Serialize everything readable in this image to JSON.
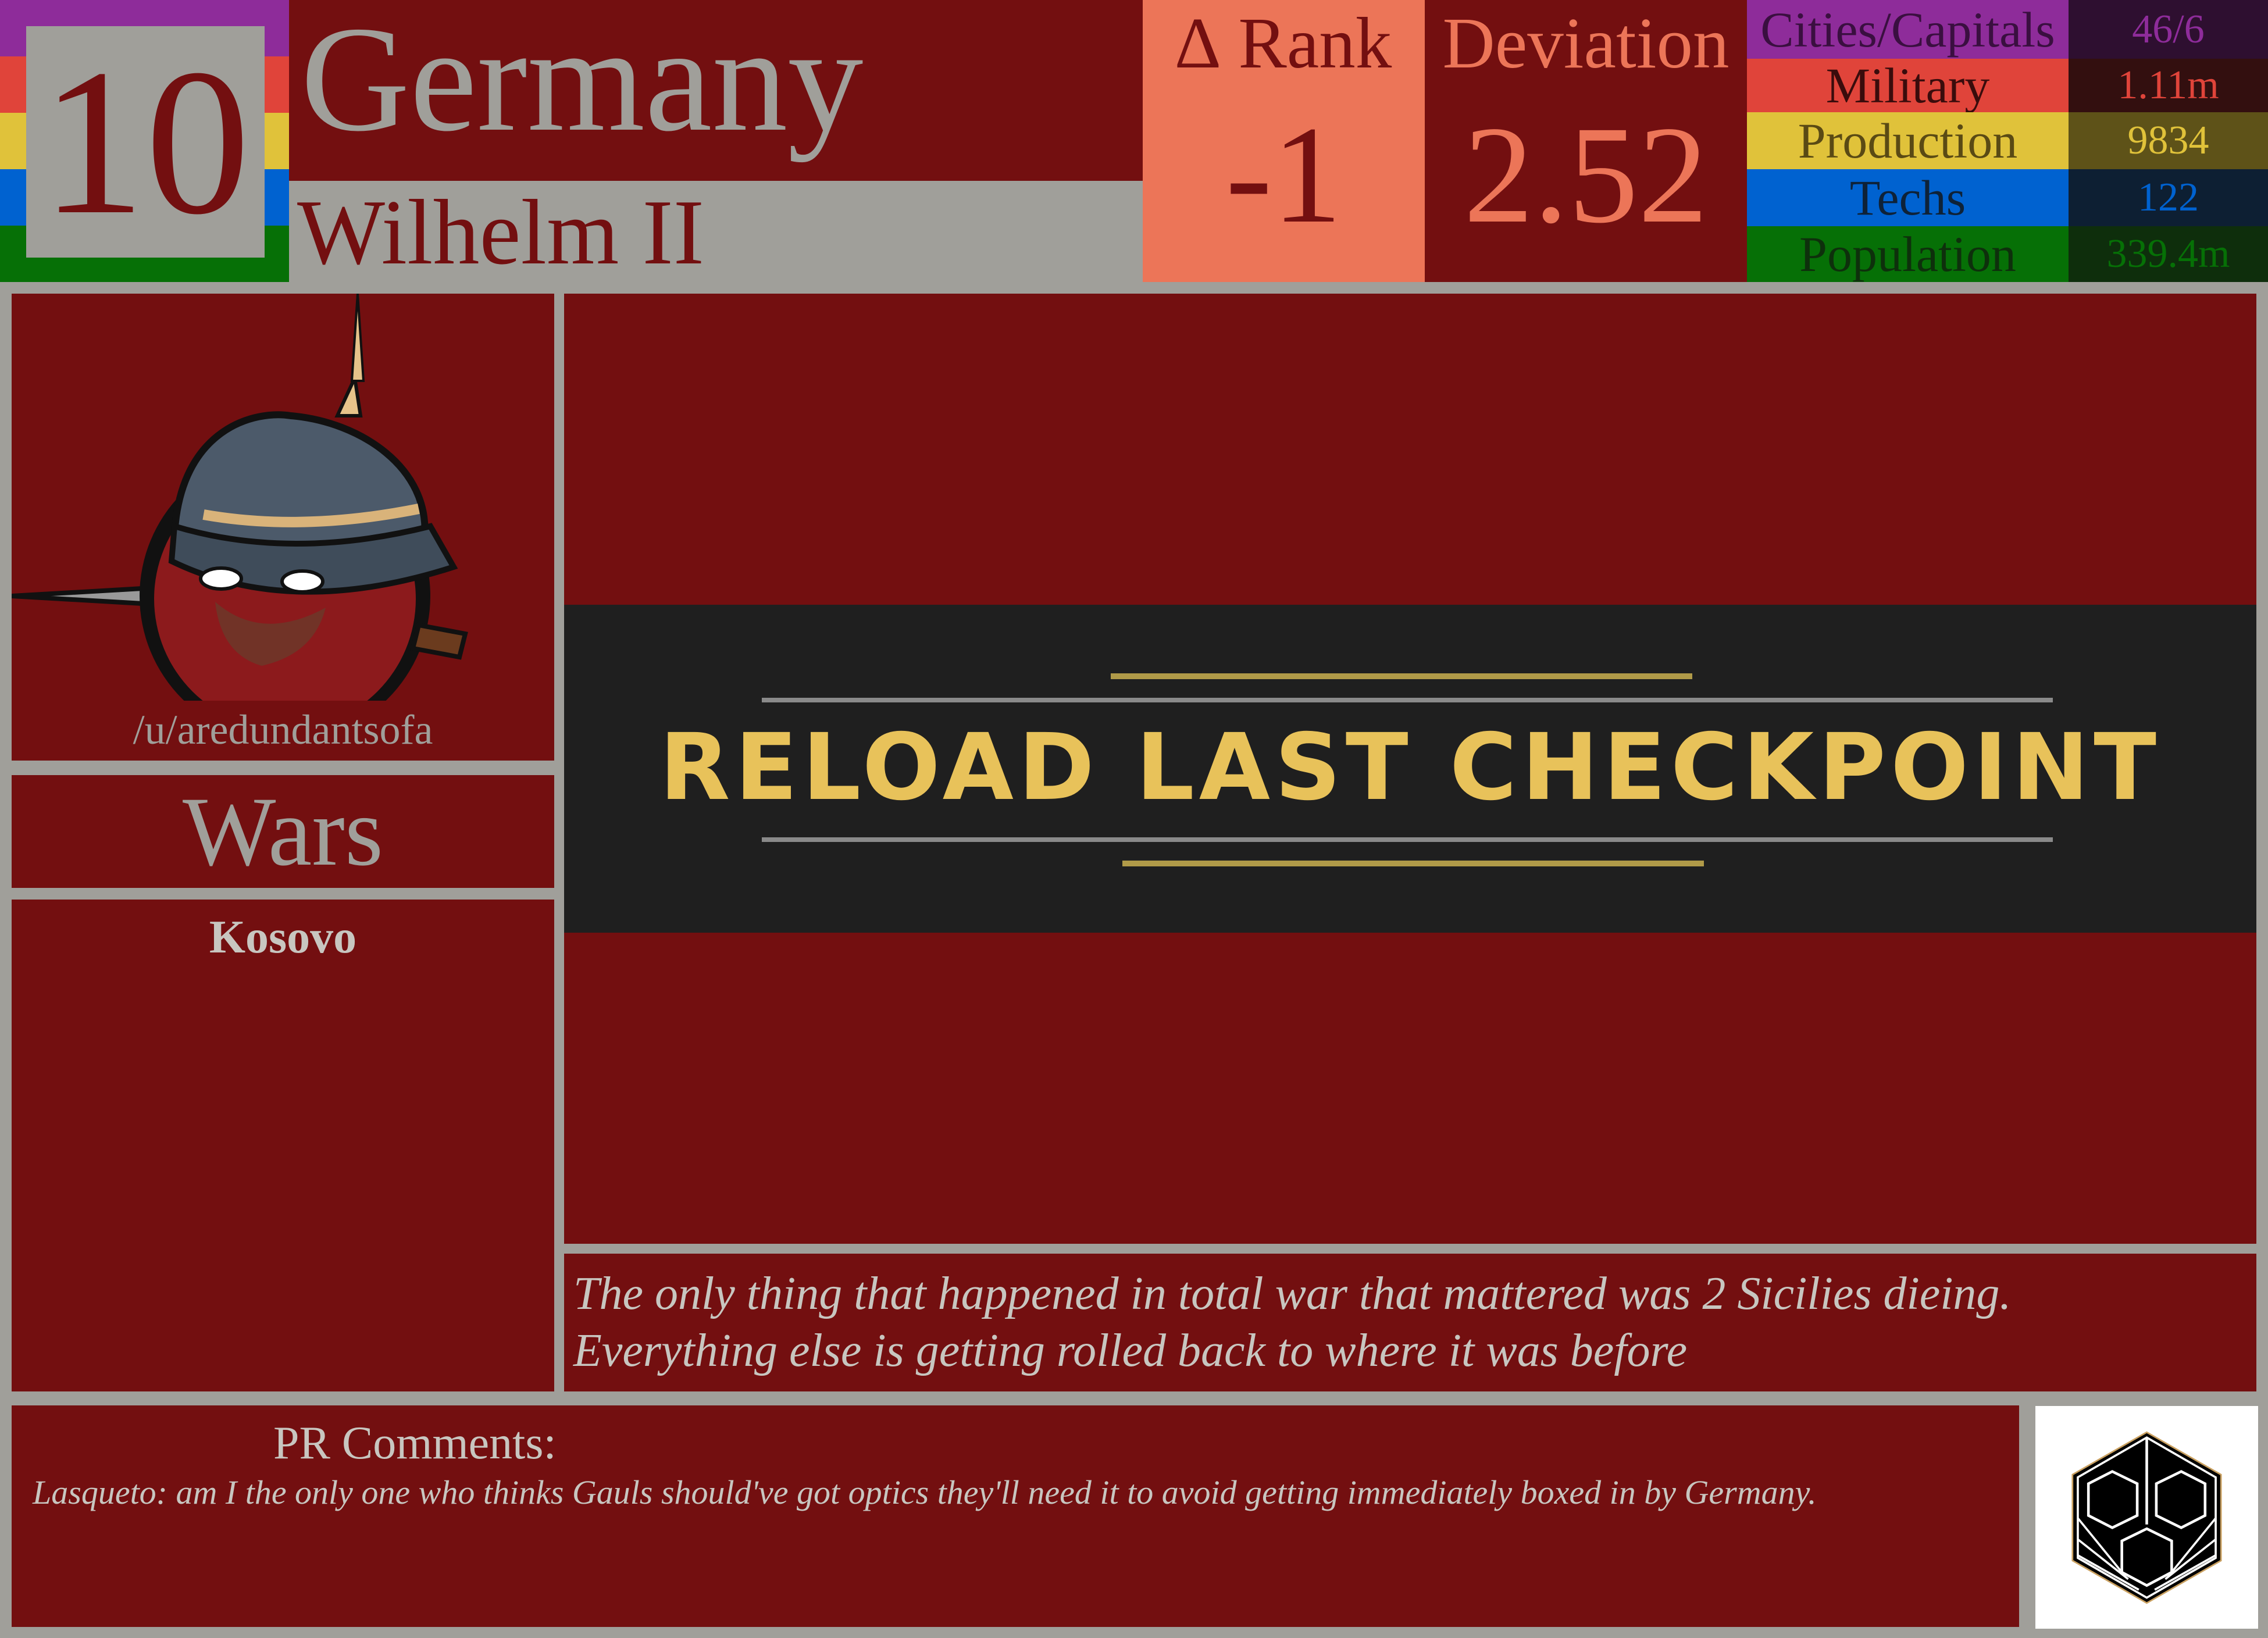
{
  "header": {
    "rank_number": "10",
    "country": "Germany",
    "leader": "Wilhelm II",
    "rank_change_label": "∆ Rank",
    "rank_change_value": "-1",
    "deviation_label": "Deviation",
    "deviation_value": "2.52",
    "flag_stripe_colors": [
      "#8e2c9a",
      "#e0443a",
      "#e0c23a",
      "#0062d0",
      "#067006"
    ]
  },
  "stats": [
    {
      "label": "Cities/Capitals",
      "value": "46/6",
      "color": "#8e2c9a",
      "dark": "#2e0f30",
      "text": "#3a0f40"
    },
    {
      "label": "Military",
      "value": "1.11m",
      "color": "#e0443a",
      "dark": "#330f0f",
      "text": "#3a0c0c"
    },
    {
      "label": "Production",
      "value": "9834",
      "color": "#e0c23a",
      "dark": "#5e5218",
      "text": "#5a4a14"
    },
    {
      "label": "Techs",
      "value": "122",
      "color": "#0062d0",
      "dark": "#0d1f33",
      "text": "#0e2238"
    },
    {
      "label": "Population",
      "value": "339.4m",
      "color": "#067006",
      "dark": "#0e2e0c",
      "text": "#0e300c"
    }
  ],
  "player": {
    "username": "/u/aredundantsofa"
  },
  "wars": {
    "title": "Wars",
    "items": [
      "Kosovo"
    ]
  },
  "image": {
    "banner_text": "RELOAD LAST CHECKPOINT"
  },
  "description": {
    "line1": "The only thing that happened in total war that mattered was 2 Sicilies dieing.",
    "line2": "Everything else is getting rolled back to where it was before"
  },
  "comments": {
    "title": "PR Comments:",
    "text": "Lasqueto: am I the only one who thinks Gauls should've got optics they'll need it to avoid getting immediately boxed in by Germany."
  }
}
